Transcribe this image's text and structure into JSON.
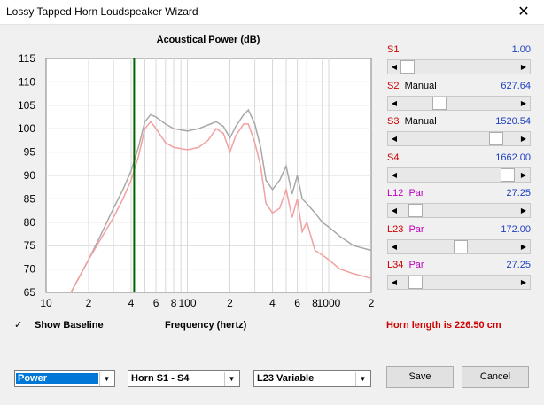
{
  "window": {
    "title": "Lossy Tapped Horn Loudspeaker Wizard",
    "close_glyph": "✕"
  },
  "chart_data": {
    "type": "line",
    "title": "Acoustical Power (dB)",
    "xlabel": "Frequency (hertz)",
    "ylabel": "",
    "x_scale": "log",
    "xlim": [
      10,
      2000
    ],
    "ylim": [
      65,
      115
    ],
    "yticks": [
      "115",
      "110",
      "105",
      "100",
      "95",
      "90",
      "85",
      "80",
      "75",
      "70",
      "65"
    ],
    "xticks": [
      "10",
      "2",
      "4",
      "6",
      "8",
      "100",
      "2",
      "4",
      "6",
      "8",
      "1000",
      "2"
    ],
    "grid": true,
    "marker_x": 42,
    "colors": {
      "series1": "#a8a8a8",
      "series2": "#f2a0a0",
      "marker": "#006400"
    },
    "series": [
      {
        "x": [
          15,
          20,
          25,
          30,
          35,
          40,
          45,
          50,
          55,
          60,
          70,
          80,
          100,
          120,
          140,
          160,
          180,
          200,
          220,
          250,
          270,
          300,
          330,
          360,
          400,
          450,
          500,
          550,
          600,
          650,
          700,
          800,
          900,
          1000,
          1200,
          1500,
          2000
        ],
        "values": [
          65,
          72,
          78,
          83,
          87,
          91,
          96,
          101.5,
          103,
          102.5,
          101,
          100,
          99.5,
          100,
          100.8,
          101.5,
          100.5,
          98,
          100.5,
          103,
          104,
          101,
          96,
          89,
          87,
          89,
          92,
          86,
          90,
          85,
          84,
          82,
          80,
          79,
          77,
          75,
          74
        ]
      },
      {
        "x": [
          15,
          20,
          25,
          30,
          35,
          40,
          45,
          50,
          55,
          60,
          70,
          80,
          100,
          120,
          140,
          160,
          180,
          200,
          220,
          250,
          270,
          300,
          330,
          360,
          400,
          450,
          500,
          550,
          600,
          650,
          700,
          800,
          900,
          1000,
          1200,
          1500,
          2000
        ],
        "values": [
          65,
          72,
          77,
          81,
          85,
          89,
          94,
          100,
          101.5,
          100,
          97,
          96,
          95.5,
          96,
          97.5,
          100,
          99,
          95,
          98.5,
          101,
          101,
          97,
          92,
          84,
          82,
          83,
          87,
          81,
          85,
          78,
          80,
          74,
          73,
          72,
          70,
          69,
          68
        ]
      }
    ]
  },
  "sliders": [
    {
      "label": "S1",
      "mode": "",
      "value": "1.00",
      "label_color": "#cc0000",
      "mode_color": "#cc0000",
      "fraction": 0.0
    },
    {
      "label": "S2",
      "mode": "Manual",
      "value": "627.64",
      "label_color": "#cc0000",
      "mode_color": "#000000",
      "fraction": 0.31
    },
    {
      "label": "S3",
      "mode": "Manual",
      "value": "1520.54",
      "label_color": "#cc0000",
      "mode_color": "#000000",
      "fraction": 0.86
    },
    {
      "label": "S4",
      "mode": "",
      "value": "1662.00",
      "label_color": "#cc0000",
      "mode_color": "#cc0000",
      "fraction": 0.97
    },
    {
      "label": "L12",
      "mode": "Par",
      "value": "27.25",
      "label_color": "#c000c0",
      "mode_color": "#c000c0",
      "fraction": 0.08
    },
    {
      "label": "L23",
      "mode": "Par",
      "value": "172.00",
      "label_color": "#cc0000",
      "mode_color": "#c000c0",
      "fraction": 0.52
    },
    {
      "label": "L34",
      "mode": "Par",
      "value": "27.25",
      "label_color": "#cc0000",
      "mode_color": "#c000c0",
      "fraction": 0.08
    }
  ],
  "baseline": {
    "label": "Show Baseline",
    "checked_glyph": "✓"
  },
  "horn_length": "Horn length is 226.50 cm",
  "combos": {
    "power": "Power",
    "horn": "Horn S1 - S4",
    "variable": "L23 Variable"
  },
  "buttons": {
    "save": "Save",
    "cancel": "Cancel"
  },
  "glyphs": {
    "left": "◀",
    "right": "▶",
    "down": "▼"
  }
}
